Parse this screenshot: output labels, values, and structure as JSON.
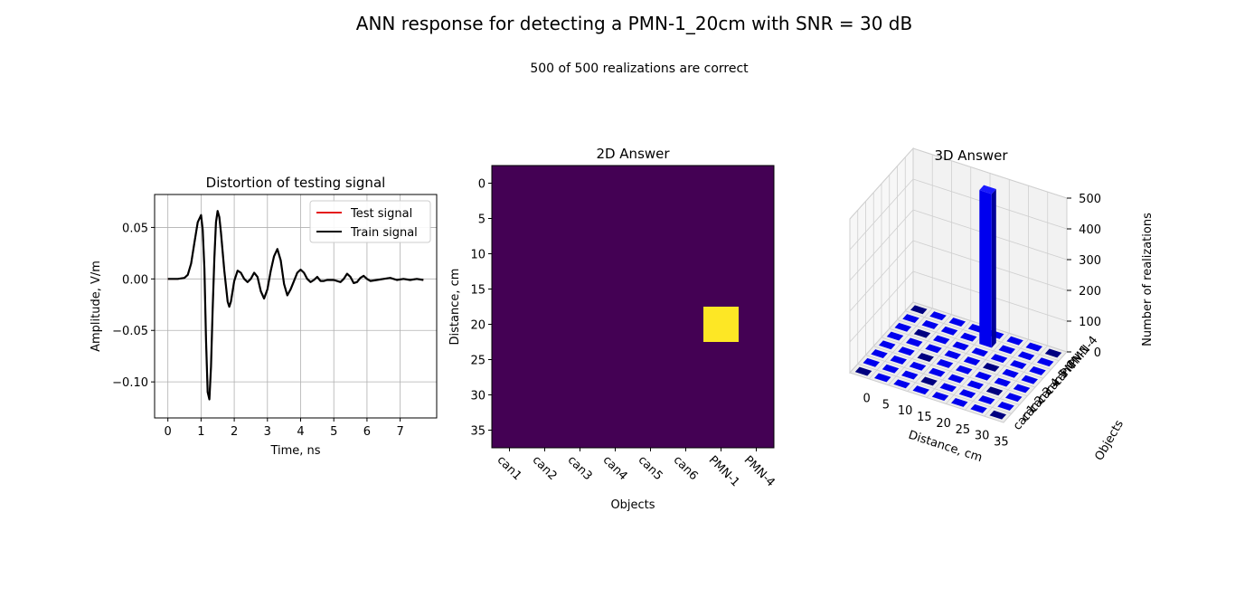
{
  "figure": {
    "title": "ANN response for detecting a PMN-1_20cm with SNR = 30 dB",
    "subtitle": "500 of 500 realizations are correct"
  },
  "chart_data": [
    {
      "type": "line",
      "title": "Distortion of testing signal",
      "xlabel": "Time, ns",
      "ylabel": "Amplitude, V/m",
      "xlim": [
        -0.4,
        8.1
      ],
      "ylim": [
        -0.135,
        0.082
      ],
      "xticks": [
        0,
        1,
        2,
        3,
        4,
        5,
        6,
        7
      ],
      "yticks": [
        -0.1,
        -0.05,
        0.0,
        0.05
      ],
      "ytick_labels": [
        "−0.10",
        "−0.05",
        "0.00",
        "0.05"
      ],
      "grid": true,
      "legend_position": "upper right",
      "series": [
        {
          "name": "Test signal",
          "color": "#e41a1c",
          "points": [
            [
              0,
              0.0
            ],
            [
              0.3,
              0.0
            ],
            [
              0.5,
              0.001
            ],
            [
              0.6,
              0.004
            ],
            [
              0.7,
              0.015
            ],
            [
              0.8,
              0.035
            ],
            [
              0.9,
              0.055
            ],
            [
              1.0,
              0.062
            ],
            [
              1.05,
              0.048
            ],
            [
              1.1,
              0.01
            ],
            [
              1.15,
              -0.06
            ],
            [
              1.2,
              -0.11
            ],
            [
              1.25,
              -0.117
            ],
            [
              1.3,
              -0.085
            ],
            [
              1.35,
              -0.03
            ],
            [
              1.4,
              0.02
            ],
            [
              1.45,
              0.055
            ],
            [
              1.5,
              0.066
            ],
            [
              1.55,
              0.06
            ],
            [
              1.6,
              0.045
            ],
            [
              1.7,
              0.008
            ],
            [
              1.8,
              -0.022
            ],
            [
              1.85,
              -0.027
            ],
            [
              1.9,
              -0.022
            ],
            [
              2.0,
              -0.002
            ],
            [
              2.1,
              0.008
            ],
            [
              2.2,
              0.006
            ],
            [
              2.3,
              0.0
            ],
            [
              2.4,
              -0.003
            ],
            [
              2.5,
              0.0
            ],
            [
              2.6,
              0.006
            ],
            [
              2.7,
              0.002
            ],
            [
              2.8,
              -0.012
            ],
            [
              2.9,
              -0.019
            ],
            [
              3.0,
              -0.01
            ],
            [
              3.1,
              0.008
            ],
            [
              3.2,
              0.022
            ],
            [
              3.3,
              0.029
            ],
            [
              3.4,
              0.018
            ],
            [
              3.5,
              -0.005
            ],
            [
              3.6,
              -0.016
            ],
            [
              3.7,
              -0.01
            ],
            [
              3.8,
              -0.002
            ],
            [
              3.9,
              0.006
            ],
            [
              4.0,
              0.009
            ],
            [
              4.1,
              0.006
            ],
            [
              4.2,
              0.0
            ],
            [
              4.3,
              -0.003
            ],
            [
              4.4,
              -0.001
            ],
            [
              4.5,
              0.002
            ],
            [
              4.6,
              -0.002
            ],
            [
              4.7,
              -0.002
            ],
            [
              4.8,
              -0.001
            ],
            [
              5.0,
              -0.001
            ],
            [
              5.2,
              -0.003
            ],
            [
              5.3,
              0.0
            ],
            [
              5.4,
              0.005
            ],
            [
              5.5,
              0.002
            ],
            [
              5.6,
              -0.004
            ],
            [
              5.7,
              -0.003
            ],
            [
              5.8,
              0.001
            ],
            [
              5.9,
              0.003
            ],
            [
              6.0,
              0.0
            ],
            [
              6.1,
              -0.002
            ],
            [
              6.3,
              -0.001
            ],
            [
              6.5,
              0.0
            ],
            [
              6.7,
              0.001
            ],
            [
              6.9,
              -0.001
            ],
            [
              7.1,
              0.0
            ],
            [
              7.3,
              -0.001
            ],
            [
              7.5,
              0.0
            ],
            [
              7.7,
              -0.001
            ]
          ]
        },
        {
          "name": "Train signal",
          "color": "#000000",
          "points": [
            [
              0,
              0.0
            ],
            [
              0.3,
              0.0
            ],
            [
              0.5,
              0.001
            ],
            [
              0.6,
              0.004
            ],
            [
              0.7,
              0.015
            ],
            [
              0.8,
              0.035
            ],
            [
              0.9,
              0.055
            ],
            [
              1.0,
              0.062
            ],
            [
              1.05,
              0.048
            ],
            [
              1.1,
              0.01
            ],
            [
              1.15,
              -0.06
            ],
            [
              1.2,
              -0.11
            ],
            [
              1.25,
              -0.117
            ],
            [
              1.3,
              -0.085
            ],
            [
              1.35,
              -0.03
            ],
            [
              1.4,
              0.02
            ],
            [
              1.45,
              0.055
            ],
            [
              1.5,
              0.066
            ],
            [
              1.55,
              0.06
            ],
            [
              1.6,
              0.045
            ],
            [
              1.7,
              0.008
            ],
            [
              1.8,
              -0.022
            ],
            [
              1.85,
              -0.027
            ],
            [
              1.9,
              -0.022
            ],
            [
              2.0,
              -0.002
            ],
            [
              2.1,
              0.008
            ],
            [
              2.2,
              0.006
            ],
            [
              2.3,
              0.0
            ],
            [
              2.4,
              -0.003
            ],
            [
              2.5,
              0.0
            ],
            [
              2.6,
              0.006
            ],
            [
              2.7,
              0.002
            ],
            [
              2.8,
              -0.012
            ],
            [
              2.9,
              -0.019
            ],
            [
              3.0,
              -0.01
            ],
            [
              3.1,
              0.008
            ],
            [
              3.2,
              0.022
            ],
            [
              3.3,
              0.029
            ],
            [
              3.4,
              0.018
            ],
            [
              3.5,
              -0.005
            ],
            [
              3.6,
              -0.016
            ],
            [
              3.7,
              -0.01
            ],
            [
              3.8,
              -0.002
            ],
            [
              3.9,
              0.006
            ],
            [
              4.0,
              0.009
            ],
            [
              4.1,
              0.006
            ],
            [
              4.2,
              0.0
            ],
            [
              4.3,
              -0.003
            ],
            [
              4.4,
              -0.001
            ],
            [
              4.5,
              0.002
            ],
            [
              4.6,
              -0.002
            ],
            [
              4.7,
              -0.002
            ],
            [
              4.8,
              -0.001
            ],
            [
              5.0,
              -0.001
            ],
            [
              5.2,
              -0.003
            ],
            [
              5.3,
              0.0
            ],
            [
              5.4,
              0.005
            ],
            [
              5.5,
              0.002
            ],
            [
              5.6,
              -0.004
            ],
            [
              5.7,
              -0.003
            ],
            [
              5.8,
              0.001
            ],
            [
              5.9,
              0.003
            ],
            [
              6.0,
              0.0
            ],
            [
              6.1,
              -0.002
            ],
            [
              6.3,
              -0.001
            ],
            [
              6.5,
              0.0
            ],
            [
              6.7,
              0.001
            ],
            [
              6.9,
              -0.001
            ],
            [
              7.1,
              0.0
            ],
            [
              7.3,
              -0.001
            ],
            [
              7.5,
              0.0
            ],
            [
              7.7,
              -0.001
            ]
          ]
        }
      ]
    },
    {
      "type": "heatmap",
      "title": "2D Answer",
      "xlabel": "Objects",
      "ylabel": "Distance, cm",
      "categories": [
        "can1",
        "can2",
        "can3",
        "can4",
        "can5",
        "can6",
        "PMN-1",
        "PMN-4"
      ],
      "ylim": [
        37.5,
        -2.5
      ],
      "yticks": [
        0,
        5,
        10,
        15,
        20,
        25,
        30,
        35
      ],
      "background_color": "#440154",
      "highlight_color": "#fde725",
      "cells": [
        {
          "object": "PMN-1",
          "distance": 20,
          "value": 500
        }
      ]
    },
    {
      "type": "bar3d",
      "title": "3D Answer",
      "xlabel": "Distance, cm",
      "ylabel": "Objects",
      "zlabel": "Number of realizations",
      "xticks": [
        0,
        5,
        10,
        15,
        20,
        25,
        30,
        35
      ],
      "categories": [
        "can1",
        "can2",
        "can3",
        "can4",
        "can5",
        "can6",
        "PMN-1",
        "PMN-4"
      ],
      "zticks": [
        0,
        100,
        200,
        300,
        400,
        500
      ],
      "bar_color": "#0000ff",
      "bars": [
        {
          "object": "PMN-1",
          "distance": 20,
          "value": 500
        }
      ]
    }
  ]
}
